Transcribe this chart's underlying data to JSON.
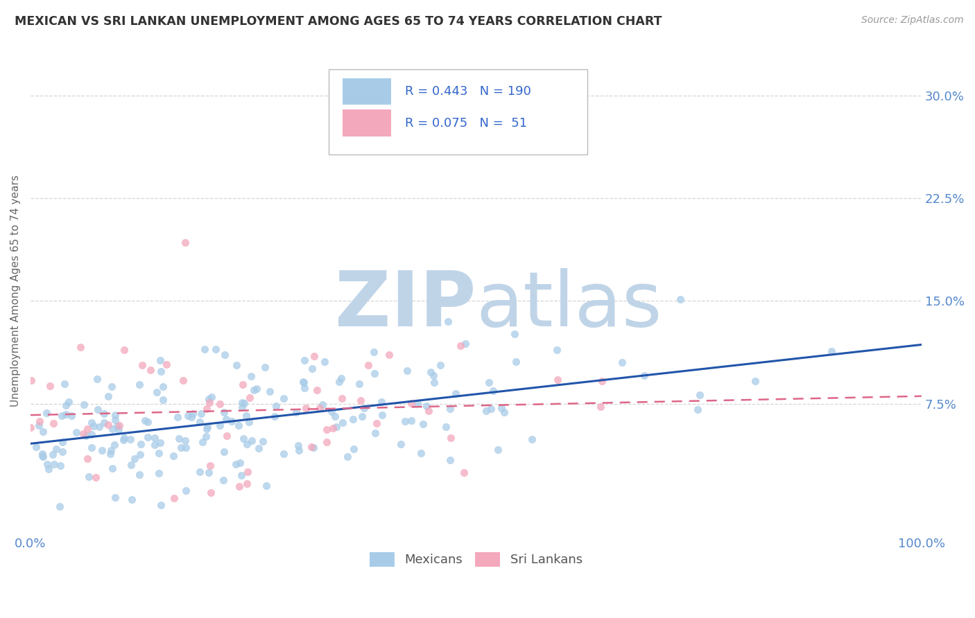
{
  "title": "MEXICAN VS SRI LANKAN UNEMPLOYMENT AMONG AGES 65 TO 74 YEARS CORRELATION CHART",
  "source": "Source: ZipAtlas.com",
  "ylabel": "Unemployment Among Ages 65 to 74 years",
  "ytick_vals": [
    0.075,
    0.15,
    0.225,
    0.3
  ],
  "ytick_labels": [
    "7.5%",
    "15.0%",
    "22.5%",
    "30.0%"
  ],
  "xlim": [
    0.0,
    1.0
  ],
  "ylim": [
    -0.02,
    0.335
  ],
  "mexican_color": "#A8CCE8",
  "srilankan_color": "#F4A8BC",
  "mexican_line_color": "#2255AA",
  "srilankan_line_color": "#DD6688",
  "mexican_R": 0.443,
  "mexican_N": 190,
  "srilankan_R": 0.075,
  "srilankan_N": 51,
  "watermark": "ZIPatlas",
  "watermark_color_zip": "#C0D4E8",
  "watermark_color_atlas": "#C0D4E8",
  "legend_text_color": "#3366CC",
  "background_color": "#FFFFFF",
  "grid_color": "#CCCCCC",
  "title_color": "#333333",
  "tick_color": "#5588CC"
}
